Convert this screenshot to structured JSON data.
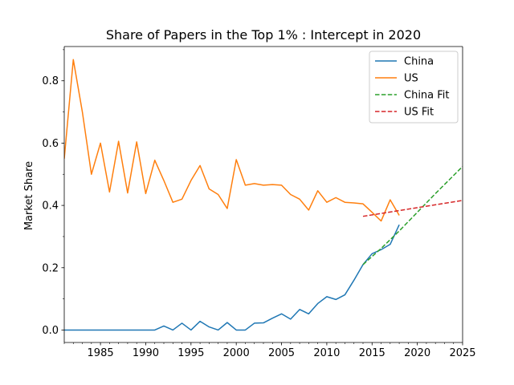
{
  "chart_data": {
    "type": "line",
    "title": "Share of Papers in the Top 1% : Intercept in 2020",
    "xlabel": "",
    "ylabel": "Market Share",
    "xlim": [
      1981,
      2025
    ],
    "ylim": [
      -0.04,
      0.91
    ],
    "xticks": [
      1985,
      1990,
      1995,
      2000,
      2005,
      2010,
      2015,
      2020,
      2025
    ],
    "yticks": [
      0.0,
      0.2,
      0.4,
      0.6,
      0.8
    ],
    "ytick_labels": [
      "0.0",
      "0.2",
      "0.4",
      "0.6",
      "0.8"
    ],
    "grid": false,
    "legend_position": "top-right",
    "series": [
      {
        "name": "China",
        "style": "solid",
        "color": "#1f77b4",
        "x": [
          1981,
          1982,
          1983,
          1984,
          1985,
          1986,
          1987,
          1988,
          1989,
          1990,
          1991,
          1992,
          1993,
          1994,
          1995,
          1996,
          1997,
          1998,
          1999,
          2000,
          2001,
          2002,
          2003,
          2004,
          2005,
          2006,
          2007,
          2008,
          2009,
          2010,
          2011,
          2012,
          2013,
          2014,
          2015,
          2016,
          2017,
          2018
        ],
        "y": [
          0,
          0,
          0,
          0,
          0,
          0,
          0,
          0,
          0,
          0,
          0,
          0.013,
          0,
          0.022,
          0,
          0.028,
          0.01,
          0,
          0.024,
          0,
          0,
          0.022,
          0.023,
          0.038,
          0.052,
          0.035,
          0.066,
          0.052,
          0.085,
          0.107,
          0.098,
          0.113,
          0.16,
          0.21,
          0.245,
          0.258,
          0.275,
          0.338
        ]
      },
      {
        "name": "US",
        "style": "solid",
        "color": "#ff7f0e",
        "x": [
          1981,
          1982,
          1983,
          1984,
          1985,
          1986,
          1987,
          1988,
          1989,
          1990,
          1991,
          1992,
          1993,
          1994,
          1995,
          1996,
          1997,
          1998,
          1999,
          2000,
          2001,
          2002,
          2003,
          2004,
          2005,
          2006,
          2007,
          2008,
          2009,
          2010,
          2011,
          2012,
          2013,
          2014,
          2015,
          2016,
          2017,
          2018
        ],
        "y": [
          0.55,
          0.868,
          0.7,
          0.5,
          0.6,
          0.443,
          0.606,
          0.44,
          0.604,
          0.438,
          0.545,
          0.48,
          0.41,
          0.42,
          0.48,
          0.528,
          0.453,
          0.435,
          0.39,
          0.547,
          0.465,
          0.47,
          0.465,
          0.467,
          0.465,
          0.435,
          0.42,
          0.385,
          0.447,
          0.41,
          0.425,
          0.41,
          0.408,
          0.405,
          0.378,
          0.35,
          0.418,
          0.368
        ]
      },
      {
        "name": "China Fit",
        "style": "dashed",
        "color": "#2ca02c",
        "x": [
          2014,
          2016,
          2018,
          2020,
          2022,
          2025
        ],
        "y": [
          0.21,
          0.262,
          0.318,
          0.378,
          0.438,
          0.525
        ]
      },
      {
        "name": "US Fit",
        "style": "dashed",
        "color": "#d62728",
        "x": [
          2014,
          2025
        ],
        "y": [
          0.365,
          0.416
        ]
      }
    ]
  }
}
